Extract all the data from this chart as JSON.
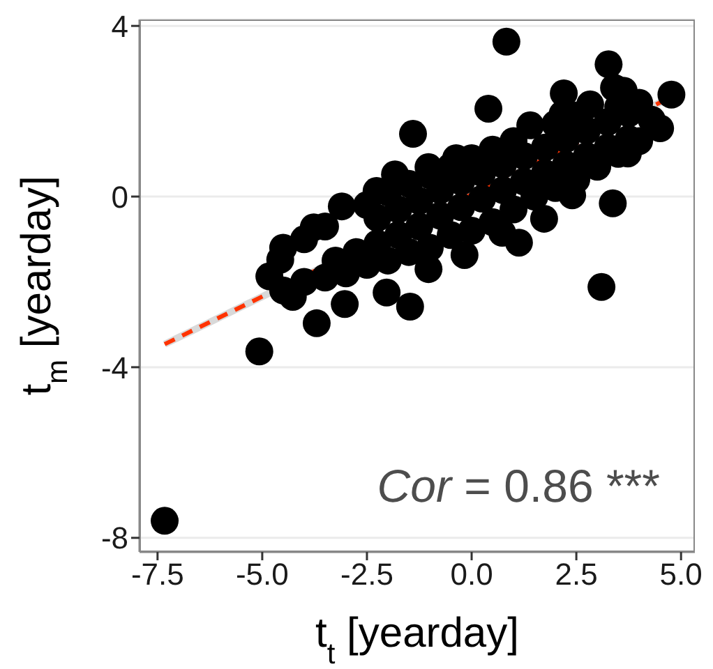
{
  "chart_data": {
    "type": "scatter",
    "xlabel": "t$_{t}$ [yearday]",
    "ylabel": "t$_{m}$ [yearday]",
    "xlim": [
      -7.93,
      5.33
    ],
    "ylim": [
      -8.33,
      4.15
    ],
    "xticks": [
      -7.5,
      {
        "value": -5,
        "label": "-5.0"
      },
      -2.5,
      {
        "value": 0,
        "label": "0.0"
      },
      2.5,
      {
        "value": 5,
        "label": "5.0"
      }
    ],
    "yticks": [
      -8,
      -4,
      0,
      4
    ],
    "grid": "y",
    "annotations": [
      "Cor = 0.86 ***"
    ],
    "series": [
      {
        "type": "line",
        "color": "#d9d9d9",
        "line_style": "solid",
        "x": [
          -7.33,
          4.7
        ],
        "values": [
          -3.46,
          2.3
        ]
      },
      {
        "type": "line",
        "color": "#ff3300",
        "line_style": "dashed",
        "x": [
          -7.33,
          4.7
        ],
        "values": [
          -3.46,
          2.3
        ]
      },
      {
        "color": "#000000",
        "marker": "circle",
        "x": [
          -7.33,
          -5.07,
          -3.7,
          -1.47,
          -1.4,
          0.83,
          3.27,
          3.37,
          3.1,
          4.77,
          1.13,
          2.2,
          0.4,
          3.4,
          4.5,
          -4.83,
          -4.57,
          -4.27,
          -3.77,
          -3.1,
          -2.27,
          -1.83,
          -1.03,
          -0.37,
          1.4,
          2.17,
          2.83,
          3.63,
          -3.03,
          -2.03,
          -1.03,
          -0.17,
          0.73,
          1.73,
          2.4,
          3.73,
          -4.5,
          -4.5,
          -4,
          -4,
          -3.5,
          -3.5,
          -3,
          -2.5,
          -2.5,
          -2,
          -2,
          -1.5,
          -1.5,
          -1,
          -1,
          -0.5,
          -0.5,
          0,
          0,
          0.5,
          0.5,
          1,
          1,
          1.5,
          2,
          2,
          2.5,
          2.5,
          3,
          3.5,
          3.5,
          4,
          4,
          4.3,
          -3.25,
          -2.75,
          -2.25,
          -2.25,
          -1.75,
          -1.75,
          -1.25,
          -1.25,
          -0.75,
          -0.75,
          -0.25,
          -0.25,
          0.25,
          0.25,
          0.75,
          0.75,
          1.25,
          1.25,
          1.75,
          1.75,
          2.25,
          2.25,
          2.75,
          2.75,
          3.25,
          3.25,
          3.75,
          3.75
        ],
        "values": [
          -7.6,
          -3.63,
          -2.97,
          -2.58,
          1.47,
          3.63,
          3.1,
          -0.16,
          -2.12,
          2.39,
          -1.08,
          2.42,
          2.06,
          2.55,
          1.6,
          -1.87,
          -1.48,
          -2.35,
          -0.72,
          -0.23,
          0.13,
          0.52,
          0.69,
          0.9,
          1.67,
          1.93,
          2.16,
          2.48,
          -2.52,
          -2.25,
          -1.7,
          -1.37,
          -0.85,
          -0.52,
          0.03,
          1.01,
          -2.2,
          -1.2,
          -2,
          -1,
          -1.9,
          -0.7,
          -1.8,
          -1.6,
          -0.2,
          -1.5,
          0.1,
          -1.3,
          0.3,
          -1.2,
          0.5,
          -0.9,
          0.7,
          -0.8,
          0.9,
          -0.6,
          1.1,
          -0.3,
          1.3,
          0,
          0.2,
          1.7,
          0.4,
          1.9,
          0.7,
          1,
          2.1,
          1.3,
          2.2,
          1.8,
          -1.5,
          -1.3,
          -1.1,
          -0.5,
          -0.9,
          -0.3,
          -0.7,
          -0.1,
          -0.45,
          0.15,
          -0.25,
          0.35,
          -0.05,
          0.55,
          0.15,
          0.75,
          0.35,
          0.95,
          0.55,
          1.15,
          0.75,
          1.35,
          0.95,
          1.55,
          1.15,
          1.75,
          1.35,
          1.95
        ]
      }
    ]
  }
}
